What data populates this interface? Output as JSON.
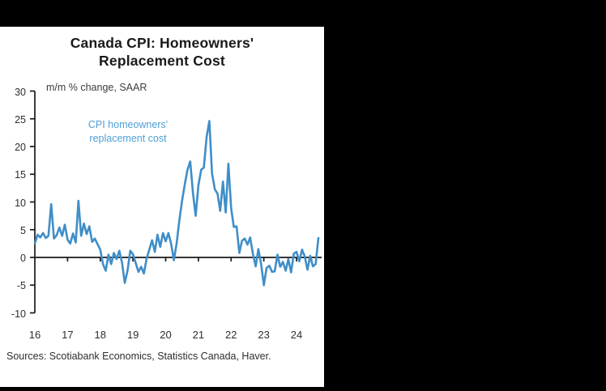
{
  "window": {
    "background_color": "#000000",
    "panel_background_color": "#ffffff"
  },
  "chart_data": {
    "type": "line",
    "title": "Canada CPI: Homeowners' Replacement Cost",
    "subtitle": "m/m % change, SAAR",
    "annotation": "CPI homeowners' replacement cost",
    "annotation_color": "#4d9fd6",
    "line_color": "#3f8ec8",
    "axis_color": "#1a1a1a",
    "frequency": "monthly",
    "x_start": "2016-01",
    "x_end": "2024-09",
    "x_tick_labels": [
      "16",
      "17",
      "18",
      "19",
      "20",
      "21",
      "22",
      "23",
      "24"
    ],
    "ylim": [
      -10,
      30
    ],
    "ytick_interval": 5,
    "grid": "off",
    "legend_position": "inside-annotation",
    "values": [
      2.5,
      4.1,
      3.6,
      4.4,
      3.5,
      3.9,
      9.6,
      3.4,
      4.0,
      5.4,
      3.9,
      5.9,
      3.2,
      2.5,
      4.3,
      2.7,
      10.2,
      3.9,
      6.1,
      4.2,
      5.6,
      2.8,
      3.4,
      2.4,
      1.4,
      -1.2,
      -2.4,
      0.5,
      -1.2,
      0.8,
      -0.3,
      1.2,
      -1.0,
      -4.6,
      -2.4,
      1.2,
      0.6,
      -1.0,
      -2.6,
      -1.7,
      -2.9,
      -0.2,
      1.4,
      3.1,
      1.0,
      4.1,
      1.9,
      4.4,
      2.9,
      4.4,
      2.4,
      -0.5,
      2.5,
      6.6,
      10.2,
      13.2,
      15.8,
      17.3,
      11.6,
      7.5,
      13.0,
      15.8,
      16.2,
      21.7,
      24.6,
      15.2,
      12.3,
      11.5,
      8.4,
      13.7,
      8.1,
      16.9,
      8.9,
      5.5,
      5.6,
      0.8,
      3.0,
      3.4,
      2.3,
      3.6,
      0.6,
      -1.6,
      1.5,
      -1.2,
      -5.0,
      -1.9,
      -1.5,
      -2.6,
      -2.5,
      0.5,
      -1.7,
      -0.8,
      -2.4,
      -0.3,
      -2.7,
      0.7,
      1.0,
      -0.7,
      1.4,
      0.2,
      -2.2,
      0.3,
      -1.6,
      -1.2,
      3.5
    ]
  },
  "footer": {
    "sources": "Sources: Scotiabank Economics, Statistics Canada, Haver."
  }
}
